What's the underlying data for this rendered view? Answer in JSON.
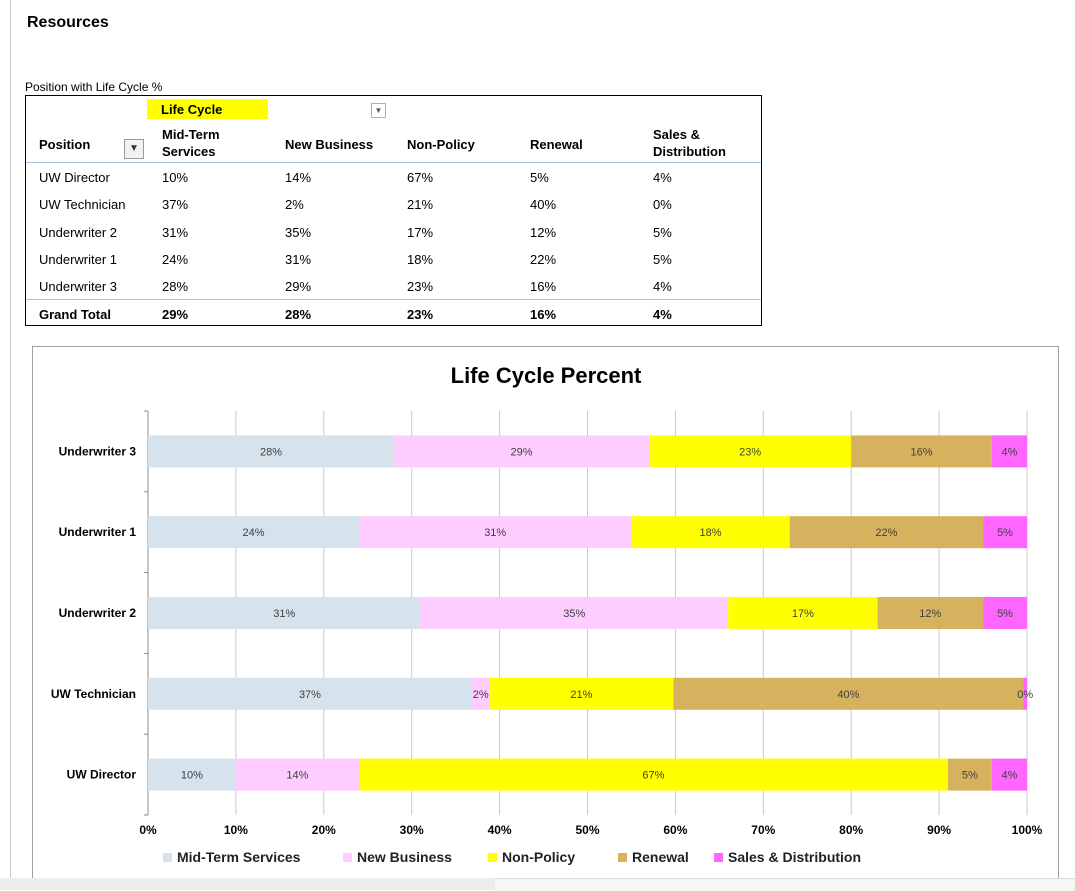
{
  "section_title": "Resources",
  "pivot": {
    "caption": "Position with Life Cycle %",
    "column_field": "Life Cycle",
    "row_field": "Position",
    "columns": [
      [
        "Mid-Term",
        "Services"
      ],
      [
        "New Business"
      ],
      [
        "Non-Policy"
      ],
      [
        "Renewal"
      ],
      [
        "Sales &",
        "Distribution"
      ]
    ],
    "rows": [
      {
        "label": "UW Director",
        "values": [
          "10%",
          "14%",
          "67%",
          "5%",
          "4%"
        ]
      },
      {
        "label": "UW Technician",
        "values": [
          "37%",
          "2%",
          "21%",
          "40%",
          "0%"
        ]
      },
      {
        "label": "Underwriter 2",
        "values": [
          "31%",
          "35%",
          "17%",
          "12%",
          "5%"
        ]
      },
      {
        "label": "Underwriter 1",
        "values": [
          "24%",
          "31%",
          "18%",
          "22%",
          "5%"
        ]
      },
      {
        "label": "Underwriter 3",
        "values": [
          "28%",
          "29%",
          "23%",
          "16%",
          "4%"
        ]
      }
    ],
    "total": {
      "label": "Grand Total",
      "values": [
        "29%",
        "28%",
        "23%",
        "16%",
        "4%"
      ]
    }
  },
  "chart_data": {
    "type": "bar",
    "orientation": "horizontal",
    "stacked": "percent",
    "title": "Life Cycle Percent",
    "categories": [
      "Underwriter 3",
      "Underwriter 1",
      "Underwriter 2",
      "UW Technician",
      "UW Director"
    ],
    "series": [
      {
        "name": "Mid-Term Services",
        "color": "#d6e2ec",
        "values": [
          28,
          24,
          31,
          37,
          10
        ]
      },
      {
        "name": "New Business",
        "color": "#ffccff",
        "values": [
          29,
          31,
          35,
          2,
          14
        ]
      },
      {
        "name": "Non-Policy",
        "color": "#ffff00",
        "values": [
          23,
          18,
          17,
          21,
          67
        ]
      },
      {
        "name": "Renewal",
        "color": "#d7b25e",
        "values": [
          16,
          22,
          12,
          40,
          5
        ]
      },
      {
        "name": "Sales & Distribution",
        "color": "#ff66ff",
        "values": [
          4,
          5,
          5,
          0.4,
          4
        ]
      }
    ],
    "data_labels": [
      [
        "28%",
        "29%",
        "23%",
        "16%",
        "4%"
      ],
      [
        "24%",
        "31%",
        "18%",
        "22%",
        "5%"
      ],
      [
        "31%",
        "35%",
        "17%",
        "12%",
        "5%"
      ],
      [
        "37%",
        "2%",
        "21%",
        "40%",
        "0%"
      ],
      [
        "10%",
        "14%",
        "67%",
        "5%",
        "4%"
      ]
    ],
    "xlim": [
      0,
      100
    ],
    "x_ticks": [
      0,
      10,
      20,
      30,
      40,
      50,
      60,
      70,
      80,
      90,
      100
    ],
    "x_tick_labels": [
      "0%",
      "10%",
      "20%",
      "30%",
      "40%",
      "50%",
      "60%",
      "70%",
      "80%",
      "90%",
      "100%"
    ],
    "grid": true,
    "legend_position": "bottom"
  }
}
